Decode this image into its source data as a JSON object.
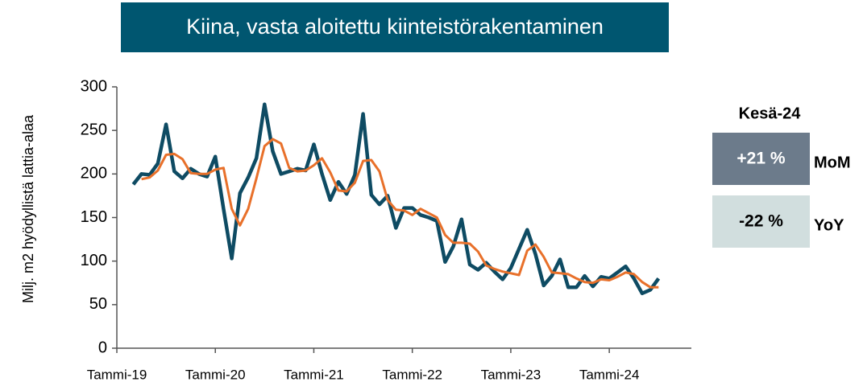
{
  "chart_data": {
    "type": "line",
    "title": "Kiina, vasta aloitettu kiinteistörakentaminen",
    "y_label": "Milj. m2 hyödyllistä lattia-alaa",
    "categories": [
      "Tammi-19",
      null,
      null,
      null,
      null,
      null,
      null,
      null,
      null,
      null,
      null,
      null,
      "Tammi-20",
      null,
      null,
      null,
      null,
      null,
      null,
      null,
      null,
      null,
      null,
      null,
      "Tammi-21",
      null,
      null,
      null,
      null,
      null,
      null,
      null,
      null,
      null,
      null,
      null,
      "Tammi-22",
      null,
      null,
      null,
      null,
      null,
      null,
      null,
      null,
      null,
      null,
      null,
      "Tammi-23",
      null,
      null,
      null,
      null,
      null,
      null,
      null,
      null,
      null,
      null,
      null,
      "Tammi-24",
      null,
      null,
      null,
      null,
      null,
      null,
      null,
      null,
      null
    ],
    "series": [
      {
        "color": "#0e4b63",
        "width": 4.5,
        "values": [
          null,
          null,
          188,
          200,
          199,
          212,
          257,
          203,
          195,
          206,
          200,
          197,
          220,
          160,
          103,
          178,
          196,
          218,
          280,
          226,
          200,
          203,
          206,
          204,
          234,
          200,
          170,
          191,
          177,
          199,
          269,
          176,
          165,
          175,
          138,
          161,
          161,
          153,
          150,
          146,
          99,
          117,
          148,
          96,
          90,
          98,
          88,
          79,
          92,
          114,
          136,
          108,
          72,
          83,
          102,
          70,
          70,
          83,
          71,
          82,
          80,
          87,
          94,
          80,
          63,
          67,
          80,
          null,
          null,
          null
        ]
      },
      {
        "color": "#e8702a",
        "width": 3,
        "values": [
          null,
          null,
          null,
          194,
          196,
          204,
          222,
          223,
          217,
          201,
          200,
          200,
          205,
          207,
          160,
          141,
          160,
          195,
          232,
          240,
          235,
          207,
          203,
          204,
          210,
          218,
          202,
          181,
          180,
          190,
          215,
          216,
          203,
          170,
          159,
          158,
          153,
          160,
          155,
          150,
          130,
          121,
          121,
          120,
          111,
          95,
          91,
          88,
          86,
          84,
          112,
          119,
          105,
          87,
          86,
          85,
          80,
          76,
          75,
          79,
          78,
          82,
          87,
          85,
          76,
          70,
          70,
          null,
          null,
          null
        ]
      }
    ],
    "ylim": [
      0,
      300
    ],
    "yticks": [
      0,
      50,
      100,
      150,
      200,
      250,
      300
    ],
    "grid": false
  },
  "side_panel": {
    "title": "Kesä-24",
    "rows": [
      {
        "value": "+21 %",
        "label": "MoM",
        "color": "#6c7b8b",
        "text_color": "#ffffff"
      },
      {
        "value": "-22 %",
        "label": "YoY",
        "color": "#d1dede",
        "text_color": "#000000"
      }
    ]
  }
}
